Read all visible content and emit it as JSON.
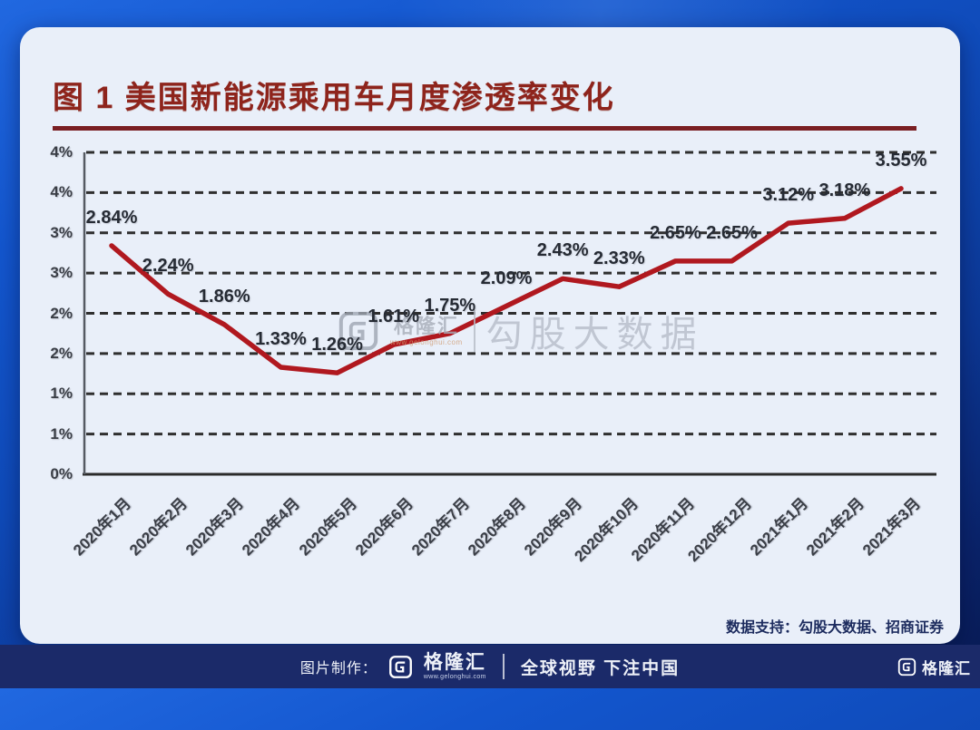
{
  "title": {
    "text": "图 1  美国新能源乘用车月度渗透率变化"
  },
  "chart_data": {
    "type": "line",
    "title": "图 1 美国新能源乘用车月度渗透率变化",
    "categories": [
      "2020年1月",
      "2020年2月",
      "2020年3月",
      "2020年4月",
      "2020年5月",
      "2020年6月",
      "2020年7月",
      "2020年8月",
      "2020年9月",
      "2020年10月",
      "2020年11月",
      "2020年12月",
      "2021年1月",
      "2021年2月",
      "2021年3月"
    ],
    "series": [
      {
        "name": "美国新能源乘用车月度渗透率",
        "values": [
          2.84,
          2.24,
          1.86,
          1.33,
          1.26,
          1.61,
          1.75,
          2.09,
          2.43,
          2.33,
          2.65,
          2.65,
          3.12,
          3.18,
          3.55
        ]
      }
    ],
    "data_labels": [
      "2.84%",
      "2.24%",
      "1.86%",
      "1.33%",
      "1.26%",
      "1.61%",
      "1.75%",
      "2.09%",
      "2.43%",
      "2.33%",
      "2.65%",
      "2.65%",
      "3.12%",
      "3.18%",
      "3.55%"
    ],
    "y_tick_labels": [
      "4%",
      "4%",
      "3%",
      "3%",
      "2%",
      "2%",
      "1%",
      "1%",
      "0%"
    ],
    "ylim": [
      0,
      4
    ],
    "y_tick_step": 0.5,
    "xlabel": "",
    "ylabel": "",
    "grid": "horizontal-dashed",
    "legend": "none",
    "line_color": "#b0181f"
  },
  "watermark": {
    "brand": "格隆汇",
    "brand_url": "www.gelonghui.com",
    "text": "勾股大数据"
  },
  "source_note": {
    "text": "数据支持：勾股大数据、招商证券"
  },
  "bottom_bar": {
    "made_by_label": "图片制作：",
    "brand": "格隆汇",
    "brand_url": "www.gelonghui.com",
    "slogan": "全球视野 下注中国",
    "corner_brand": "格隆汇"
  },
  "colors": {
    "background_top": "#1c5fd8",
    "background_bottom": "#0a1e5e",
    "card_bg": "#e9eff9",
    "title": "#8e241c",
    "title_rule": "#7a1f23",
    "line": "#b0181f",
    "grid": "#2f2f2f",
    "axis_text": "#3a3e46",
    "data_label": "#262b34",
    "source_note": "#1c2b5e",
    "bottom_bar_bg": "#1b2a69",
    "watermark": "#b6bdc9"
  }
}
